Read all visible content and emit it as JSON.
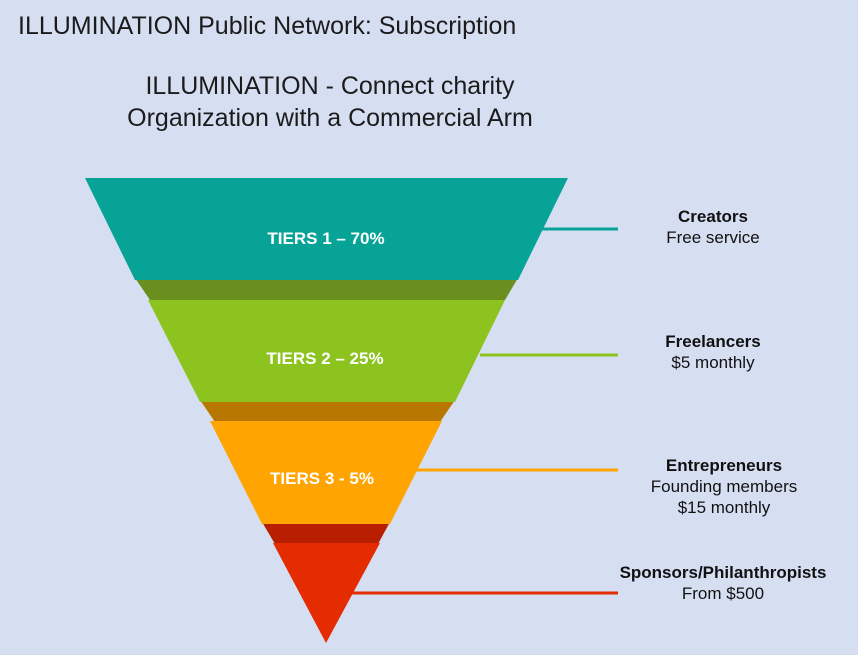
{
  "title": "ILLUMINATION Public Network: Subscription",
  "subtitle": {
    "line1": "ILLUMINATION - Connect charity",
    "line2": "Organization with a Commercial Arm"
  },
  "colors": {
    "background": "#d6dff2",
    "tier1": "#08a397",
    "tier1_shadow": "#6b8f1f",
    "tier2": "#8dc31f",
    "tier2_shadow": "#b87700",
    "tier3": "#ffa400",
    "tier3_shadow": "#b81f00",
    "tier4": "#e52b00"
  },
  "tiers": [
    {
      "label": "TIERS 1 – 70%",
      "name": "Creators",
      "lines": [
        "Free service"
      ]
    },
    {
      "label": "TIERS 2 – 25%",
      "name": "Freelancers",
      "lines": [
        "$5 monthly"
      ]
    },
    {
      "label": "TIERS 3 - 5%",
      "name": "Entrepreneurs",
      "lines": [
        "Founding members",
        "$15 monthly"
      ]
    },
    {
      "label": "",
      "name": "Sponsors/Philanthropists",
      "lines": [
        "From $500"
      ]
    }
  ]
}
